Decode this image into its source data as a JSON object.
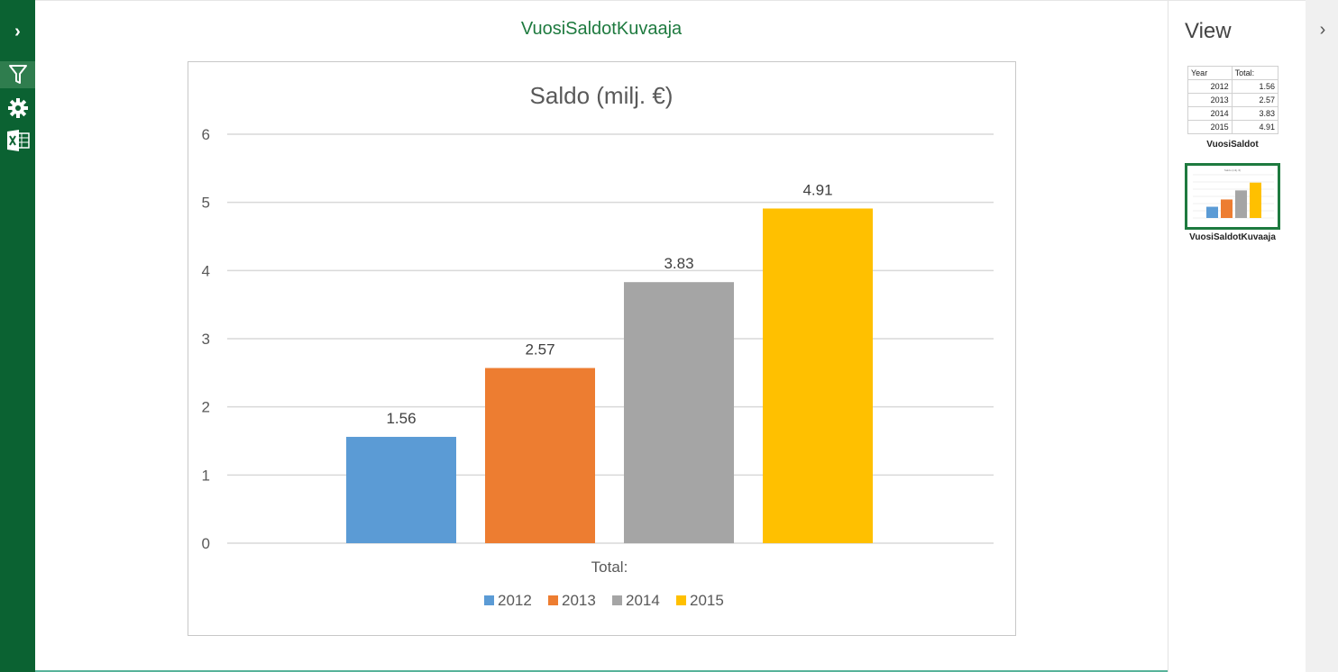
{
  "rail": {
    "buttons": [
      {
        "name": "expand-chevron-icon",
        "glyph": "›"
      },
      {
        "name": "filter-icon"
      },
      {
        "name": "settings-gear-icon"
      },
      {
        "name": "excel-icon"
      }
    ]
  },
  "main": {
    "view_title": "VuosiSaldotKuvaaja"
  },
  "panel": {
    "title": "View",
    "collapse_glyph": "›",
    "thumbnails": [
      {
        "label": "VuosiSaldot",
        "table": {
          "headers": [
            "Year",
            "Total:"
          ],
          "rows": [
            [
              "2012",
              "1.56"
            ],
            [
              "2013",
              "2.57"
            ],
            [
              "2014",
              "3.83"
            ],
            [
              "2015",
              "4.91"
            ]
          ]
        }
      },
      {
        "label": "VuosiSaldotKuvaaja"
      }
    ]
  },
  "chart_data": {
    "type": "bar",
    "title": "Saldo (milj. €)",
    "categories": [
      "Total:"
    ],
    "series": [
      {
        "name": "2012",
        "values": [
          1.56
        ],
        "color": "#5b9bd5"
      },
      {
        "name": "2013",
        "values": [
          2.57
        ],
        "color": "#ed7d31"
      },
      {
        "name": "2014",
        "values": [
          3.83
        ],
        "color": "#a5a5a5"
      },
      {
        "name": "2015",
        "values": [
          4.91
        ],
        "color": "#ffc000"
      }
    ],
    "data_labels": [
      "1.56",
      "2.57",
      "3.83",
      "4.91"
    ],
    "ylim": [
      0,
      6
    ],
    "yticks": [
      "0",
      "1",
      "2",
      "3",
      "4",
      "5",
      "6"
    ],
    "grid": true,
    "legend": "bottom"
  }
}
